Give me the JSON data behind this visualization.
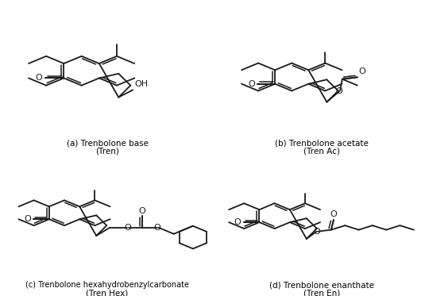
{
  "labels": [
    "(a) Trenbolone base",
    "(Tren)",
    "(b) Trenbolone acetate",
    "(Tren Ac)",
    "(c) Trenbolone hexahydrobenzylcarbonate",
    "(Tren Hex)",
    "(d) Trenbolone enanthate",
    "(Tren En)"
  ],
  "line_color": "#1a1a1a",
  "bg_color": "#ffffff",
  "lw": 1.3,
  "font_size": 7.5
}
